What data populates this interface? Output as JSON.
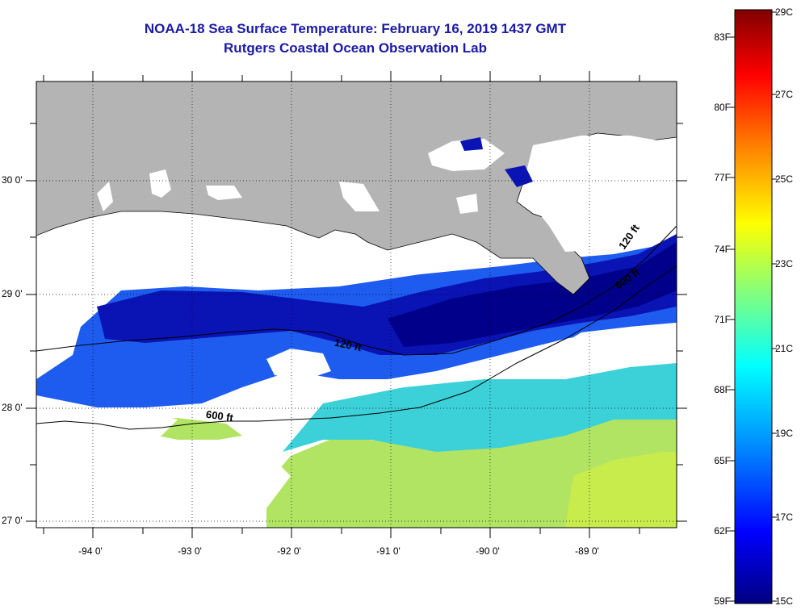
{
  "header": {
    "title": "NOAA-18 Sea Surface Temperature:  February 16, 2019 1437 GMT",
    "subtitle": "Rutgers Coastal Ocean Observation Lab"
  },
  "map": {
    "lat_labels": [
      "30 0'",
      "29 0'",
      "28 0'",
      "27 0'"
    ],
    "lon_labels": [
      "-94 0'",
      "-93 0'",
      "-92 0'",
      "-91 0'",
      "-90 0'",
      "-89 0'"
    ],
    "contour_labels": {
      "c120_mid": "120 ft",
      "c120_east": "120 ft",
      "c600_west": "600 ft",
      "c600_east": "600 ft"
    },
    "colors": {
      "land": "#b4b4b4",
      "cloud": "#ffffff",
      "cold": "#00008b",
      "warm": "#b8e85a"
    }
  },
  "colorbar": {
    "fahrenheit": [
      "83F",
      "80F",
      "77F",
      "74F",
      "71F",
      "68F",
      "65F",
      "62F",
      "59F"
    ],
    "celsius": [
      "29C",
      "27C",
      "25C",
      "23C",
      "21C",
      "19C",
      "17C",
      "15C"
    ],
    "stops": [
      "#000080",
      "#0000ff",
      "#0090ff",
      "#00ffff",
      "#80ff80",
      "#ffff00",
      "#ff8000",
      "#ff0000",
      "#800000"
    ]
  }
}
